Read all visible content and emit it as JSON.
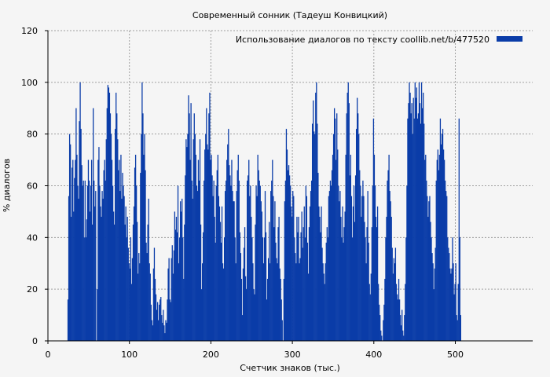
{
  "chart_data": {
    "type": "bar",
    "title": "Современный сонник (Тадеуш Конвицкий)",
    "xlabel": "Счетчик знаков (тыс.)",
    "ylabel": "% диалогов",
    "xlim": [
      0,
      595
    ],
    "ylim": [
      0,
      120
    ],
    "xticks": [
      "0",
      "100",
      "200",
      "300",
      "400",
      "500"
    ],
    "yticks": [
      "0",
      "20",
      "40",
      "60",
      "80",
      "100",
      "120"
    ],
    "grid": true,
    "legend_position": "top-right",
    "colors": {
      "bar": "#0a3ca8",
      "background": "#f5f5f5",
      "grid": "#a0a0a0"
    },
    "series": [
      {
        "name": "Использование диалогов по тексту  coollib.net/b/477520",
        "x_start": 24,
        "x_step": 1,
        "values": [
          16,
          56,
          80,
          76,
          48,
          67,
          70,
          50,
          63,
          70,
          90,
          72,
          60,
          55,
          85,
          100,
          82,
          68,
          60,
          62,
          40,
          62,
          40,
          47,
          60,
          70,
          62,
          50,
          60,
          70,
          45,
          90,
          62,
          52,
          58,
          0,
          20,
          70,
          75,
          60,
          52,
          48,
          58,
          55,
          66,
          70,
          62,
          78,
          90,
          99,
          98,
          96,
          88,
          80,
          70,
          60,
          50,
          45,
          82,
          96,
          88,
          78,
          66,
          70,
          58,
          72,
          55,
          65,
          60,
          56,
          45,
          52,
          40,
          48,
          36,
          30,
          28,
          40,
          22,
          32,
          45,
          52,
          67,
          72,
          60,
          46,
          26,
          34,
          30,
          65,
          80,
          100,
          88,
          72,
          80,
          66,
          38,
          34,
          45,
          55,
          30,
          26,
          14,
          8,
          6,
          28,
          36,
          24,
          18,
          12,
          15,
          8,
          14,
          16,
          17,
          10,
          7,
          12,
          6,
          3,
          8,
          7,
          16,
          28,
          32,
          16,
          15,
          32,
          37,
          26,
          35,
          50,
          43,
          48,
          42,
          60,
          30,
          40,
          54,
          50,
          55,
          40,
          24,
          45,
          64,
          78,
          75,
          80,
          95,
          88,
          70,
          92,
          62,
          55,
          78,
          88,
          80,
          72,
          60,
          58,
          70,
          62,
          78,
          45,
          20,
          30,
          42,
          62,
          74,
          80,
          90,
          76,
          74,
          88,
          96,
          70,
          72,
          64,
          56,
          62,
          48,
          38,
          60,
          66,
          72,
          56,
          52,
          46,
          38,
          52,
          30,
          28,
          40,
          58,
          62,
          70,
          76,
          82,
          68,
          64,
          60,
          70,
          58,
          54,
          54,
          40,
          30,
          58,
          66,
          72,
          62,
          42,
          34,
          24,
          10,
          28,
          36,
          44,
          25,
          20,
          62,
          64,
          70,
          56,
          60,
          48,
          40,
          30,
          20,
          18,
          45,
          60,
          56,
          72,
          66,
          62,
          60,
          54,
          50,
          40,
          30,
          40,
          58,
          42,
          16,
          24,
          32,
          46,
          30,
          58,
          62,
          70,
          56,
          44,
          54,
          38,
          32,
          30,
          44,
          48,
          28,
          24,
          16,
          8,
          0,
          24,
          54,
          62,
          82,
          74,
          66,
          68,
          64,
          60,
          52,
          48,
          58,
          56,
          40,
          34,
          30,
          48,
          42,
          48,
          30,
          32,
          42,
          50,
          36,
          44,
          52,
          40,
          60,
          56,
          38,
          26,
          44,
          52,
          58,
          62,
          84,
          93,
          81,
          80,
          96,
          100,
          84,
          65,
          52,
          48,
          42,
          52,
          36,
          30,
          26,
          22,
          30,
          38,
          44,
          40,
          56,
          58,
          62,
          60,
          66,
          72,
          80,
          90,
          86,
          70,
          88,
          74,
          60,
          54,
          58,
          48,
          40,
          52,
          38,
          44,
          50,
          72,
          88,
          96,
          100,
          92,
          64,
          72,
          56,
          40,
          52,
          60,
          46,
          64,
          82,
          94,
          88,
          80,
          66,
          60,
          48,
          56,
          62,
          56,
          46,
          40,
          30,
          44,
          58,
          38,
          22,
          18,
          26,
          44,
          60,
          86,
          72,
          60,
          48,
          44,
          52,
          22,
          14,
          10,
          4,
          2,
          0,
          8,
          14,
          24,
          40,
          48,
          62,
          66,
          72,
          58,
          54,
          48,
          36,
          26,
          32,
          30,
          36,
          22,
          18,
          16,
          24,
          16,
          10,
          6,
          12,
          4,
          2,
          10,
          22,
          40,
          60,
          86,
          92,
          100,
          96,
          88,
          92,
          80,
          94,
          86,
          100,
          94,
          98,
          86,
          88,
          100,
          92,
          84,
          100,
          90,
          96,
          84,
          70,
          72,
          62,
          56,
          48,
          54,
          56,
          46,
          40,
          34,
          30,
          20,
          28,
          36,
          62,
          70,
          74,
          66,
          72,
          86,
          76,
          80,
          82,
          74,
          70,
          62,
          58,
          56,
          40,
          36,
          34,
          28,
          26,
          28,
          40,
          30,
          18,
          22,
          30,
          10,
          8,
          22,
          86,
          40,
          10
        ]
      }
    ]
  }
}
